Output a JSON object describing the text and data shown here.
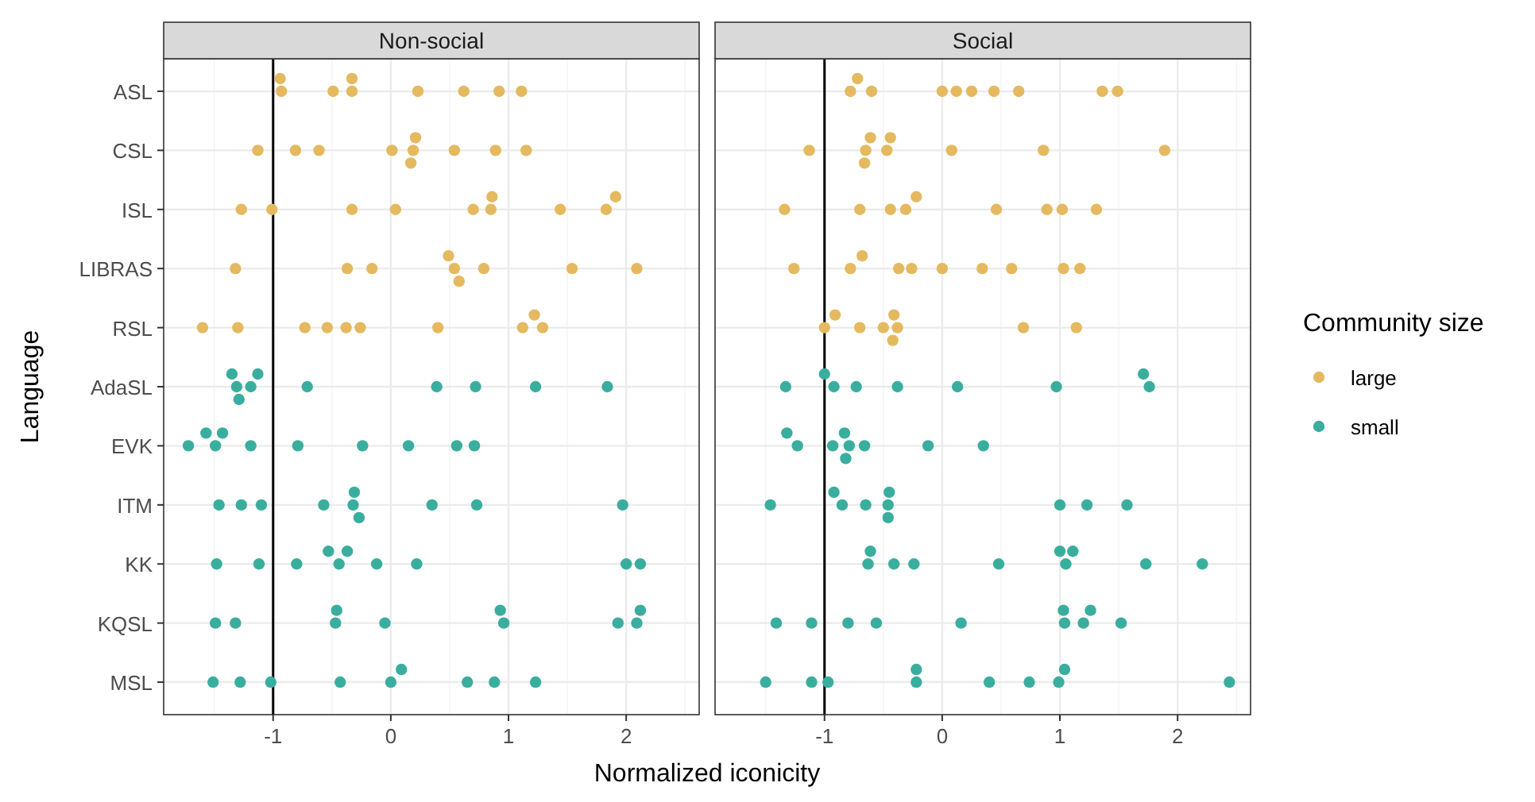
{
  "chart_data": [
    {
      "type": "scatter",
      "orientation": "horizontal",
      "title": "Non-social",
      "xlabel": "Normalized iconicity",
      "ylabel": "Language",
      "xlim": [
        -1.93,
        2.62
      ],
      "xticks": [
        -1,
        0,
        1,
        2
      ],
      "categories": [
        "ASL",
        "CSL",
        "ISL",
        "LIBRAS",
        "RSL",
        "AdaSL",
        "EVK",
        "ITM",
        "KK",
        "KQSL",
        "MSL"
      ],
      "grid": true,
      "marker": "circle",
      "legend": false,
      "ref_lines": [
        {
          "axis": "x",
          "value": -1,
          "color": "#000000"
        }
      ],
      "series": [
        {
          "color": "#e5b95f",
          "x": [
            "ASL",
            "ASL",
            "ASL",
            "ASL",
            "ASL",
            "ASL",
            "ASL",
            "ASL",
            "ASL",
            "CSL",
            "CSL",
            "CSL",
            "CSL",
            "CSL",
            "CSL",
            "CSL",
            "CSL",
            "CSL",
            "CSL",
            "ISL",
            "ISL",
            "ISL",
            "ISL",
            "ISL",
            "ISL",
            "ISL",
            "ISL",
            "ISL",
            "ISL",
            "LIBRAS",
            "LIBRAS",
            "LIBRAS",
            "LIBRAS",
            "LIBRAS",
            "LIBRAS",
            "LIBRAS",
            "LIBRAS",
            "LIBRAS",
            "RSL",
            "RSL",
            "RSL",
            "RSL",
            "RSL",
            "RSL",
            "RSL",
            "RSL",
            "RSL",
            "RSL"
          ],
          "values": [
            -0.49,
            -0.33,
            -0.33,
            0.92,
            1.11,
            0.62,
            0.23,
            -0.93,
            -0.94,
            0.01,
            0.19,
            1.15,
            -0.81,
            -0.61,
            0.21,
            0.17,
            -1.13,
            0.54,
            0.89,
            0.85,
            0.7,
            1.44,
            1.83,
            1.91,
            -1.27,
            -1.01,
            0.04,
            0.86,
            -0.33,
            0.54,
            -1.32,
            -0.37,
            0.49,
            0.58,
            1.54,
            -0.16,
            0.79,
            2.09,
            -1.6,
            -1.3,
            -0.73,
            -0.54,
            -0.38,
            -0.26,
            0.4,
            1.29,
            1.12,
            1.22
          ]
        },
        {
          "color": "#3aae9e",
          "x": [
            "AdaSL",
            "AdaSL",
            "AdaSL",
            "AdaSL",
            "AdaSL",
            "AdaSL",
            "AdaSL",
            "AdaSL",
            "AdaSL",
            "AdaSL",
            "EVK",
            "EVK",
            "EVK",
            "EVK",
            "EVK",
            "EVK",
            "EVK",
            "EVK",
            "EVK",
            "EVK",
            "ITM",
            "ITM",
            "ITM",
            "ITM",
            "ITM",
            "ITM",
            "ITM",
            "ITM",
            "ITM",
            "ITM",
            "KK",
            "KK",
            "KK",
            "KK",
            "KK",
            "KK",
            "KK",
            "KK",
            "KK",
            "KK",
            "KQSL",
            "KQSL",
            "KQSL",
            "KQSL",
            "KQSL",
            "KQSL",
            "KQSL",
            "KQSL",
            "KQSL",
            "KQSL",
            "MSL",
            "MSL",
            "MSL",
            "MSL",
            "MSL",
            "MSL",
            "MSL",
            "MSL",
            "MSL"
          ],
          "values": [
            -1.31,
            1.23,
            -1.19,
            -1.13,
            -1.35,
            -0.71,
            0.39,
            0.72,
            1.84,
            -1.29,
            -1.72,
            -1.49,
            -1.43,
            0.15,
            -1.57,
            -1.19,
            -0.79,
            -0.24,
            0.56,
            0.71,
            -1.27,
            1.97,
            0.35,
            -1.46,
            -1.1,
            -0.57,
            -0.32,
            -0.31,
            -0.27,
            0.73,
            -0.44,
            -0.8,
            -0.12,
            0.22,
            2.12,
            -1.48,
            -1.12,
            -0.53,
            -0.37,
            2.0,
            -1.32,
            -1.49,
            -0.47,
            -0.05,
            0.96,
            0.93,
            1.93,
            2.09,
            2.12,
            -0.46,
            -1.28,
            -1.02,
            -0.43,
            0.0,
            0.09,
            0.88,
            0.65,
            1.23,
            -1.51
          ]
        }
      ]
    },
    {
      "type": "scatter",
      "orientation": "horizontal",
      "title": "Social",
      "xlim": [
        -1.93,
        2.62
      ],
      "xticks": [
        -1,
        0,
        1,
        2
      ],
      "categories": [
        "ASL",
        "CSL",
        "ISL",
        "LIBRAS",
        "RSL",
        "AdaSL",
        "EVK",
        "ITM",
        "KK",
        "KQSL",
        "MSL"
      ],
      "tick_labels": "x",
      "grid": true,
      "marker": "circle",
      "legend": "right",
      "legend_title": "Community size",
      "ref_lines": [
        {
          "axis": "x",
          "value": -1,
          "color": "#000000"
        }
      ],
      "series": [
        {
          "name": "large",
          "color": "#e5b95f",
          "x": [
            "ASL",
            "ASL",
            "ASL",
            "ASL",
            "ASL",
            "ASL",
            "ASL",
            "ASL",
            "ASL",
            "ASL",
            "CSL",
            "CSL",
            "CSL",
            "CSL",
            "CSL",
            "CSL",
            "CSL",
            "CSL",
            "CSL",
            "ISL",
            "ISL",
            "ISL",
            "ISL",
            "ISL",
            "ISL",
            "ISL",
            "ISL",
            "ISL",
            "LIBRAS",
            "LIBRAS",
            "LIBRAS",
            "LIBRAS",
            "LIBRAS",
            "LIBRAS",
            "LIBRAS",
            "LIBRAS",
            "LIBRAS",
            "LIBRAS",
            "RSL",
            "RSL",
            "RSL",
            "RSL",
            "RSL",
            "RSL",
            "RSL",
            "RSL",
            "RSL"
          ],
          "values": [
            -0.78,
            -0.72,
            -0.6,
            0.0,
            0.25,
            0.44,
            0.65,
            1.49,
            1.36,
            0.12,
            -1.13,
            -0.65,
            -0.61,
            -0.47,
            0.08,
            1.89,
            0.86,
            -0.66,
            -0.44,
            -1.34,
            -0.44,
            -0.7,
            -0.31,
            -0.22,
            0.46,
            0.89,
            1.02,
            1.31,
            -1.26,
            -0.37,
            0.34,
            1.03,
            1.17,
            -0.78,
            -0.68,
            -0.26,
            0.0,
            0.59,
            -0.38,
            -0.41,
            -1.0,
            -0.42,
            0.69,
            -0.91,
            -0.7,
            -0.5,
            1.14
          ]
        },
        {
          "name": "small",
          "color": "#3aae9e",
          "x": [
            "AdaSL",
            "AdaSL",
            "AdaSL",
            "AdaSL",
            "AdaSL",
            "AdaSL",
            "AdaSL",
            "AdaSL",
            "AdaSL",
            "EVK",
            "EVK",
            "EVK",
            "EVK",
            "EVK",
            "EVK",
            "EVK",
            "EVK",
            "EVK",
            "ITM",
            "ITM",
            "ITM",
            "ITM",
            "ITM",
            "ITM",
            "ITM",
            "ITM",
            "ITM",
            "ITM",
            "KK",
            "KK",
            "KK",
            "KK",
            "KK",
            "KK",
            "KK",
            "KK",
            "KK",
            "KK",
            "KQSL",
            "KQSL",
            "KQSL",
            "KQSL",
            "KQSL",
            "KQSL",
            "KQSL",
            "KQSL",
            "KQSL",
            "KQSL",
            "MSL",
            "MSL",
            "MSL",
            "MSL",
            "MSL",
            "MSL",
            "MSL",
            "MSL",
            "MSL",
            "MSL"
          ],
          "values": [
            -0.92,
            0.97,
            -0.73,
            0.13,
            1.76,
            -1.33,
            -0.38,
            -1.0,
            1.71,
            -1.23,
            -0.93,
            -0.83,
            -0.79,
            -0.82,
            -0.66,
            0.35,
            -1.32,
            -0.12,
            -0.85,
            -0.65,
            -0.46,
            -0.45,
            1.0,
            1.23,
            1.57,
            -1.46,
            -0.92,
            -0.46,
            0.48,
            -0.41,
            1.05,
            1.11,
            1.73,
            -0.63,
            -0.61,
            -0.24,
            1.0,
            2.21,
            1.04,
            1.52,
            -0.8,
            -0.56,
            -1.41,
            -1.11,
            0.16,
            1.03,
            1.2,
            1.26,
            -0.22,
            -0.22,
            0.4,
            -0.97,
            0.99,
            2.44,
            -1.5,
            -1.11,
            0.74,
            1.04
          ]
        }
      ]
    }
  ]
}
